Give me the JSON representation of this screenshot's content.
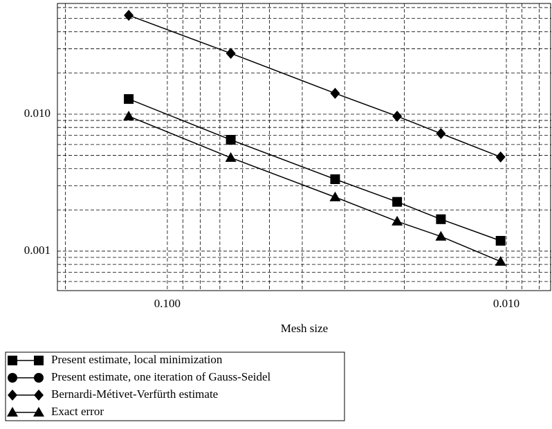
{
  "chart_data": {
    "type": "line",
    "x_label": "Mesh size",
    "x_log": true,
    "y_log": true,
    "grid": true,
    "xlim": [
      0.211,
      0.00737
    ],
    "ylim": [
      0.000515,
      0.0643
    ],
    "xticks": [
      {
        "value": 0.1,
        "label": "0.100"
      },
      {
        "value": 0.01,
        "label": "0.010"
      }
    ],
    "yticks": [
      {
        "value": 0.01,
        "label": "0.010"
      },
      {
        "value": 0.001,
        "label": "0.001"
      }
    ],
    "x_minor_grid": [
      0.2,
      0.09,
      0.08,
      0.07,
      0.06,
      0.05,
      0.04,
      0.03,
      0.02,
      0.009,
      0.008
    ],
    "y_minor_grid": [
      0.06,
      0.05,
      0.04,
      0.03,
      0.02,
      0.009,
      0.008,
      0.007,
      0.006,
      0.005,
      0.004,
      0.003,
      0.002,
      0.0009,
      0.0008,
      0.0007,
      0.0006
    ],
    "x": [
      0.13,
      0.065,
      0.032,
      0.021,
      0.0156,
      0.0104
    ],
    "series": [
      {
        "name": "Present estimate, local minimization",
        "marker": "square",
        "color": "#000000",
        "values": [
          0.0129,
          0.0065,
          0.00335,
          0.00229,
          0.00171,
          0.00119
        ]
      },
      {
        "name": "Present estimate, one iteration of Gauss-Seidel",
        "marker": "circle",
        "color": "#000000",
        "values": [
          null,
          null,
          null,
          null,
          null,
          null
        ]
      },
      {
        "name": "Bernardi-Métivet-Verfürth estimate",
        "marker": "diamond",
        "color": "#000000",
        "values": [
          0.0527,
          0.0278,
          0.0142,
          0.00966,
          0.00722,
          0.00487
        ]
      },
      {
        "name": "Exact error",
        "marker": "triangle",
        "color": "#000000",
        "values": [
          0.00966,
          0.00481,
          0.00248,
          0.00165,
          0.00128,
          0.00084
        ]
      }
    ]
  }
}
